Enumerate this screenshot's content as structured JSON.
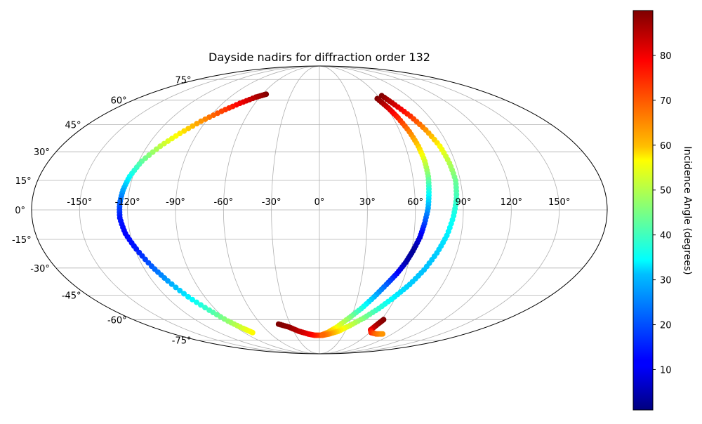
{
  "chart_data": {
    "type": "scatter",
    "projection": "mollweide",
    "title": "Dayside nadirs for diffraction order 132",
    "lon_tick_labels": [
      "-150°",
      "-120°",
      "-90°",
      "-60°",
      "-30°",
      "0°",
      "30°",
      "60°",
      "90°",
      "120°",
      "150°"
    ],
    "lat_tick_labels": [
      "75°",
      "60°",
      "45°",
      "30°",
      "15°",
      "0°",
      "-15°",
      "-30°",
      "-45°",
      "-60°",
      "-75°"
    ],
    "grid": true,
    "colorbar": {
      "label": "Incidence Angle (degrees)",
      "colormap": "jet",
      "range": [
        1,
        90
      ],
      "ticks": [
        "10",
        "20",
        "30",
        "40",
        "50",
        "60",
        "70",
        "80"
      ]
    },
    "series": [
      {
        "points": [
          {
            "lon": -56,
            "lat": 64,
            "inc": 90
          },
          {
            "lon": -64,
            "lat": 62,
            "inc": 86
          },
          {
            "lon": -74,
            "lat": 58,
            "inc": 80
          },
          {
            "lon": -84,
            "lat": 53,
            "inc": 73
          },
          {
            "lon": -94,
            "lat": 47,
            "inc": 66
          },
          {
            "lon": -103,
            "lat": 40,
            "inc": 58
          },
          {
            "lon": -111,
            "lat": 33,
            "inc": 51
          },
          {
            "lon": -118,
            "lat": 25,
            "inc": 43
          },
          {
            "lon": -122,
            "lat": 17,
            "inc": 35
          },
          {
            "lon": -124,
            "lat": 10,
            "inc": 27
          },
          {
            "lon": -125,
            "lat": 3,
            "inc": 20
          },
          {
            "lon": -125,
            "lat": -4,
            "inc": 14
          },
          {
            "lon": -123,
            "lat": -12,
            "inc": 12
          },
          {
            "lon": -119,
            "lat": -20,
            "inc": 14
          },
          {
            "lon": -114,
            "lat": -29,
            "inc": 20
          },
          {
            "lon": -109,
            "lat": -37,
            "inc": 26
          },
          {
            "lon": -103,
            "lat": -46,
            "inc": 33
          },
          {
            "lon": -96,
            "lat": -54,
            "inc": 40
          },
          {
            "lon": -90,
            "lat": -61,
            "inc": 47
          },
          {
            "lon": -84,
            "lat": -66,
            "inc": 53
          },
          {
            "lon": -80,
            "lat": -69,
            "inc": 57
          }
        ]
      },
      {
        "points": [
          {
            "lon": 57,
            "lat": 61,
            "inc": 90
          },
          {
            "lon": 61,
            "lat": 55,
            "inc": 83
          },
          {
            "lon": 64,
            "lat": 49,
            "inc": 76
          },
          {
            "lon": 67,
            "lat": 41,
            "inc": 68
          },
          {
            "lon": 69,
            "lat": 33,
            "inc": 61
          },
          {
            "lon": 70,
            "lat": 25,
            "inc": 53
          },
          {
            "lon": 70,
            "lat": 17,
            "inc": 45
          },
          {
            "lon": 69,
            "lat": 9,
            "inc": 36
          },
          {
            "lon": 68,
            "lat": 1,
            "inc": 27
          },
          {
            "lon": 66,
            "lat": -7,
            "inc": 18
          },
          {
            "lon": 64,
            "lat": -14,
            "inc": 10
          },
          {
            "lon": 61,
            "lat": -21,
            "inc": 3
          },
          {
            "lon": 58,
            "lat": -27,
            "inc": 5
          },
          {
            "lon": 54,
            "lat": -33,
            "inc": 12
          },
          {
            "lon": 49,
            "lat": -39,
            "inc": 20
          },
          {
            "lon": 43,
            "lat": -46,
            "inc": 28
          },
          {
            "lon": 36,
            "lat": -53,
            "inc": 37
          },
          {
            "lon": 28,
            "lat": -59,
            "inc": 46
          },
          {
            "lon": 19,
            "lat": -65,
            "inc": 55
          },
          {
            "lon": 10,
            "lat": -69,
            "inc": 63
          },
          {
            "lon": 2,
            "lat": -71,
            "inc": 71
          },
          {
            "lon": -6,
            "lat": -71,
            "inc": 76
          },
          {
            "lon": -14,
            "lat": -70,
            "inc": 80
          },
          {
            "lon": -24,
            "lat": -68,
            "inc": 84
          },
          {
            "lon": -33,
            "lat": -65,
            "inc": 88
          },
          {
            "lon": -42,
            "lat": -63,
            "inc": 90
          }
        ]
      },
      {
        "points": [
          {
            "lon": 64,
            "lat": 63,
            "inc": 90
          },
          {
            "lon": 69,
            "lat": 57,
            "inc": 83
          },
          {
            "lon": 75,
            "lat": 50,
            "inc": 75
          },
          {
            "lon": 80,
            "lat": 42,
            "inc": 66
          },
          {
            "lon": 84,
            "lat": 33,
            "inc": 57
          },
          {
            "lon": 86,
            "lat": 24,
            "inc": 50
          },
          {
            "lon": 87,
            "lat": 15,
            "inc": 44
          },
          {
            "lon": 86,
            "lat": 6,
            "inc": 40
          },
          {
            "lon": 84,
            "lat": -3,
            "inc": 36
          },
          {
            "lon": 81,
            "lat": -13,
            "inc": 33
          },
          {
            "lon": 77,
            "lat": -22,
            "inc": 30
          },
          {
            "lon": 72,
            "lat": -31,
            "inc": 29
          },
          {
            "lon": 66,
            "lat": -39,
            "inc": 30
          },
          {
            "lon": 59,
            "lat": -46,
            "inc": 33
          },
          {
            "lon": 51,
            "lat": -53,
            "inc": 38
          },
          {
            "lon": 42,
            "lat": -59,
            "inc": 45
          },
          {
            "lon": 32,
            "lat": -64,
            "inc": 52
          },
          {
            "lon": 22,
            "lat": -68,
            "inc": 59
          },
          {
            "lon": 12,
            "lat": -70,
            "inc": 66
          },
          {
            "lon": 4,
            "lat": -71,
            "inc": 70
          }
        ]
      },
      {
        "points": [
          {
            "lon": 62,
            "lat": -60,
            "inc": 90
          },
          {
            "lon": 60,
            "lat": -63,
            "inc": 88
          },
          {
            "lon": 58,
            "lat": -67,
            "inc": 82
          },
          {
            "lon": 62,
            "lat": -69,
            "inc": 76
          },
          {
            "lon": 70,
            "lat": -70,
            "inc": 70
          },
          {
            "lon": 78,
            "lat": -70,
            "inc": 66
          }
        ]
      }
    ]
  }
}
